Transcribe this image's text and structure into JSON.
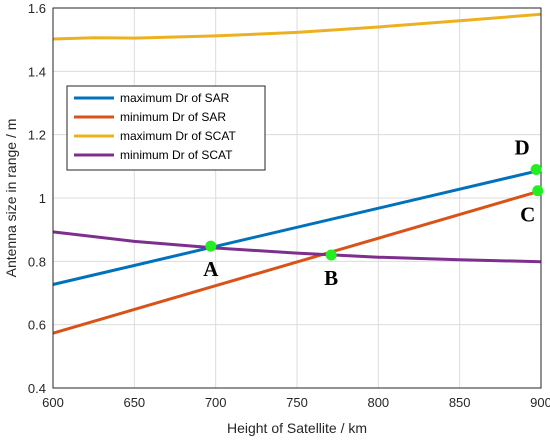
{
  "chart_data": {
    "type": "line",
    "title": "",
    "xlabel": "Height of Satellite / km",
    "ylabel": "Antenna size in range / m",
    "xlim": [
      600,
      900
    ],
    "ylim": [
      0.4,
      1.6
    ],
    "x_ticks": [
      "600",
      "650",
      "700",
      "750",
      "800",
      "850",
      "900"
    ],
    "y_ticks": [
      "0.4",
      "0.6",
      "0.8",
      "1",
      "1.2",
      "1.4",
      "1.6"
    ],
    "grid": true,
    "legend_position": "upper-left",
    "series": [
      {
        "name": "maximum Dr of SAR",
        "color": "#0072BD",
        "x": [
          600,
          900
        ],
        "y": [
          0.727,
          1.088
        ]
      },
      {
        "name": "minimum Dr of SAR",
        "color": "#D95319",
        "x": [
          600,
          900
        ],
        "y": [
          0.573,
          1.023
        ]
      },
      {
        "name": "maximum Dr of SCAT",
        "color": "#EDB120",
        "x": [
          600,
          625,
          650,
          700,
          750,
          800,
          850,
          900
        ],
        "y": [
          1.502,
          1.506,
          1.505,
          1.512,
          1.523,
          1.54,
          1.56,
          1.58
        ]
      },
      {
        "name": "minimum Dr of SCAT",
        "color": "#7E2F8E",
        "x": [
          600,
          650,
          700,
          750,
          800,
          850,
          900
        ],
        "y": [
          0.893,
          0.863,
          0.842,
          0.826,
          0.813,
          0.805,
          0.799
        ]
      }
    ],
    "annotations": [
      {
        "label": "A",
        "x": 697,
        "y": 0.848,
        "position": "below"
      },
      {
        "label": "B",
        "x": 771,
        "y": 0.82,
        "position": "below"
      },
      {
        "label": "C",
        "x": 898,
        "y": 1.023,
        "position": "below-left"
      },
      {
        "label": "D",
        "x": 897,
        "y": 1.09,
        "position": "above-left"
      }
    ],
    "marker_color": "#22EE22"
  }
}
